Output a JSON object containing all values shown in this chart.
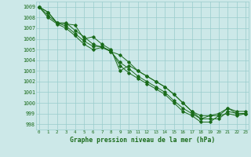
{
  "xlabel": "Graphe pression niveau de la mer (hPa)",
  "ylim": [
    997.5,
    1009.5
  ],
  "xlim": [
    -0.3,
    23.3
  ],
  "yticks": [
    998,
    999,
    1000,
    1001,
    1002,
    1003,
    1004,
    1005,
    1006,
    1007,
    1008,
    1009
  ],
  "xticks": [
    0,
    1,
    2,
    3,
    4,
    5,
    6,
    7,
    8,
    9,
    10,
    11,
    12,
    13,
    14,
    15,
    16,
    17,
    18,
    19,
    20,
    21,
    22,
    23
  ],
  "line_color": "#1a6b1a",
  "bg_color": "#cce8e8",
  "grid_color": "#99cccc",
  "series": [
    [
      1009.0,
      1008.5,
      1007.5,
      1007.5,
      1006.8,
      1006.2,
      1005.5,
      1005.2,
      1004.8,
      1004.5,
      1003.8,
      1003.0,
      1002.5,
      1002.0,
      1001.5,
      1000.8,
      1000.0,
      999.2,
      998.8,
      998.8,
      998.8,
      999.5,
      999.2,
      999.2
    ],
    [
      1009.0,
      1008.2,
      1007.5,
      1007.2,
      1006.5,
      1005.8,
      1005.3,
      1005.3,
      1004.8,
      1003.8,
      1003.2,
      1002.5,
      1002.0,
      1001.5,
      1001.0,
      1000.2,
      999.5,
      999.0,
      998.5,
      998.5,
      998.5,
      999.2,
      999.0,
      999.0
    ],
    [
      1009.0,
      1008.0,
      1007.4,
      1007.0,
      1006.3,
      1005.5,
      1005.0,
      1005.2,
      1004.9,
      1003.5,
      1002.8,
      1002.3,
      1001.8,
      1001.3,
      1000.8,
      1000.0,
      999.2,
      998.8,
      998.2,
      998.2,
      998.8,
      999.0,
      998.8,
      999.0
    ],
    [
      1009.0,
      1008.5,
      1007.5,
      1007.4,
      1007.3,
      1006.0,
      1006.2,
      1005.5,
      1005.0,
      1003.0,
      1003.5,
      1003.0,
      1002.5,
      1002.0,
      1001.5,
      1000.8,
      1000.0,
      999.2,
      998.5,
      998.8,
      999.0,
      999.5,
      999.0,
      999.0
    ]
  ]
}
